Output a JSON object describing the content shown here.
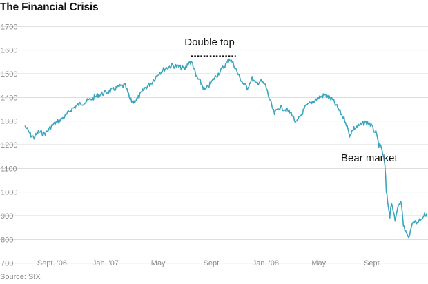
{
  "chart_data": {
    "type": "line",
    "title": "The Financial Crisis",
    "source": "Source: SIX",
    "xlabel": "",
    "ylabel": "",
    "ylim": [
      670,
      1730
    ],
    "grid": true,
    "y_ticks": [
      700,
      800,
      900,
      1000,
      1100,
      1200,
      1300,
      1400,
      1500,
      1600,
      1700
    ],
    "x_ticks": [
      {
        "label": "Sept. '06",
        "date": "2006-09-01"
      },
      {
        "label": "Jan. '07",
        "date": "2007-01-01"
      },
      {
        "label": "May",
        "date": "2007-05-01"
      },
      {
        "label": "Sept.",
        "date": "2007-09-01"
      },
      {
        "label": "Jan. '08",
        "date": "2008-01-01"
      },
      {
        "label": "May",
        "date": "2008-05-01"
      },
      {
        "label": "Sept.",
        "date": "2008-09-01"
      }
    ],
    "xlim": [
      "2006-07-01",
      "2009-01-05"
    ],
    "annotations": [
      {
        "text": "Double top",
        "date": "2007-08-26",
        "value": 1620
      },
      {
        "text": "Bear market",
        "date": "2008-08-24",
        "value": 1130
      }
    ],
    "double_top_line": {
      "start": "2007-07-15",
      "end": "2007-10-25",
      "value": 1575
    },
    "series": [
      {
        "color": "#3aa6be",
        "x": [
          "2006-07-01",
          "2006-07-08",
          "2006-07-15",
          "2006-07-22",
          "2006-08-01",
          "2006-08-15",
          "2006-09-01",
          "2006-09-15",
          "2006-10-01",
          "2006-10-15",
          "2006-11-01",
          "2006-11-15",
          "2006-12-01",
          "2006-12-15",
          "2007-01-01",
          "2007-01-15",
          "2007-02-01",
          "2007-02-15",
          "2007-02-26",
          "2007-03-05",
          "2007-03-15",
          "2007-04-01",
          "2007-04-15",
          "2007-05-01",
          "2007-05-15",
          "2007-06-01",
          "2007-06-15",
          "2007-07-01",
          "2007-07-10",
          "2007-07-18",
          "2007-07-26",
          "2007-08-05",
          "2007-08-15",
          "2007-08-25",
          "2007-09-05",
          "2007-09-15",
          "2007-09-25",
          "2007-10-05",
          "2007-10-10",
          "2007-10-20",
          "2007-11-01",
          "2007-11-10",
          "2007-11-20",
          "2007-12-01",
          "2007-12-10",
          "2007-12-20",
          "2008-01-01",
          "2008-01-10",
          "2008-01-21",
          "2008-02-01",
          "2008-02-15",
          "2008-03-01",
          "2008-03-10",
          "2008-03-20",
          "2008-04-01",
          "2008-04-15",
          "2008-05-01",
          "2008-05-15",
          "2008-06-01",
          "2008-06-15",
          "2008-07-01",
          "2008-07-10",
          "2008-07-20",
          "2008-08-01",
          "2008-08-15",
          "2008-08-25",
          "2008-09-01",
          "2008-09-08",
          "2008-09-15",
          "2008-09-22",
          "2008-09-29",
          "2008-10-02",
          "2008-10-05",
          "2008-10-10",
          "2008-10-14",
          "2008-10-18",
          "2008-10-22",
          "2008-10-28",
          "2008-11-04",
          "2008-11-10",
          "2008-11-20",
          "2008-11-26",
          "2008-12-02",
          "2008-12-10",
          "2008-12-20",
          "2009-01-02"
        ],
        "values": [
          1280,
          1260,
          1240,
          1230,
          1255,
          1245,
          1280,
          1300,
          1320,
          1350,
          1370,
          1380,
          1395,
          1410,
          1420,
          1430,
          1445,
          1450,
          1390,
          1380,
          1395,
          1440,
          1460,
          1500,
          1520,
          1535,
          1530,
          1520,
          1550,
          1545,
          1490,
          1465,
          1430,
          1450,
          1480,
          1500,
          1525,
          1545,
          1565,
          1540,
          1490,
          1460,
          1440,
          1480,
          1455,
          1470,
          1450,
          1390,
          1330,
          1360,
          1350,
          1330,
          1290,
          1320,
          1360,
          1380,
          1400,
          1410,
          1390,
          1350,
          1300,
          1240,
          1270,
          1280,
          1295,
          1290,
          1270,
          1250,
          1200,
          1180,
          1110,
          1000,
          960,
          900,
          960,
          920,
          870,
          940,
          970,
          860,
          810,
          830,
          880,
          870,
          890,
          910
        ]
      }
    ]
  }
}
